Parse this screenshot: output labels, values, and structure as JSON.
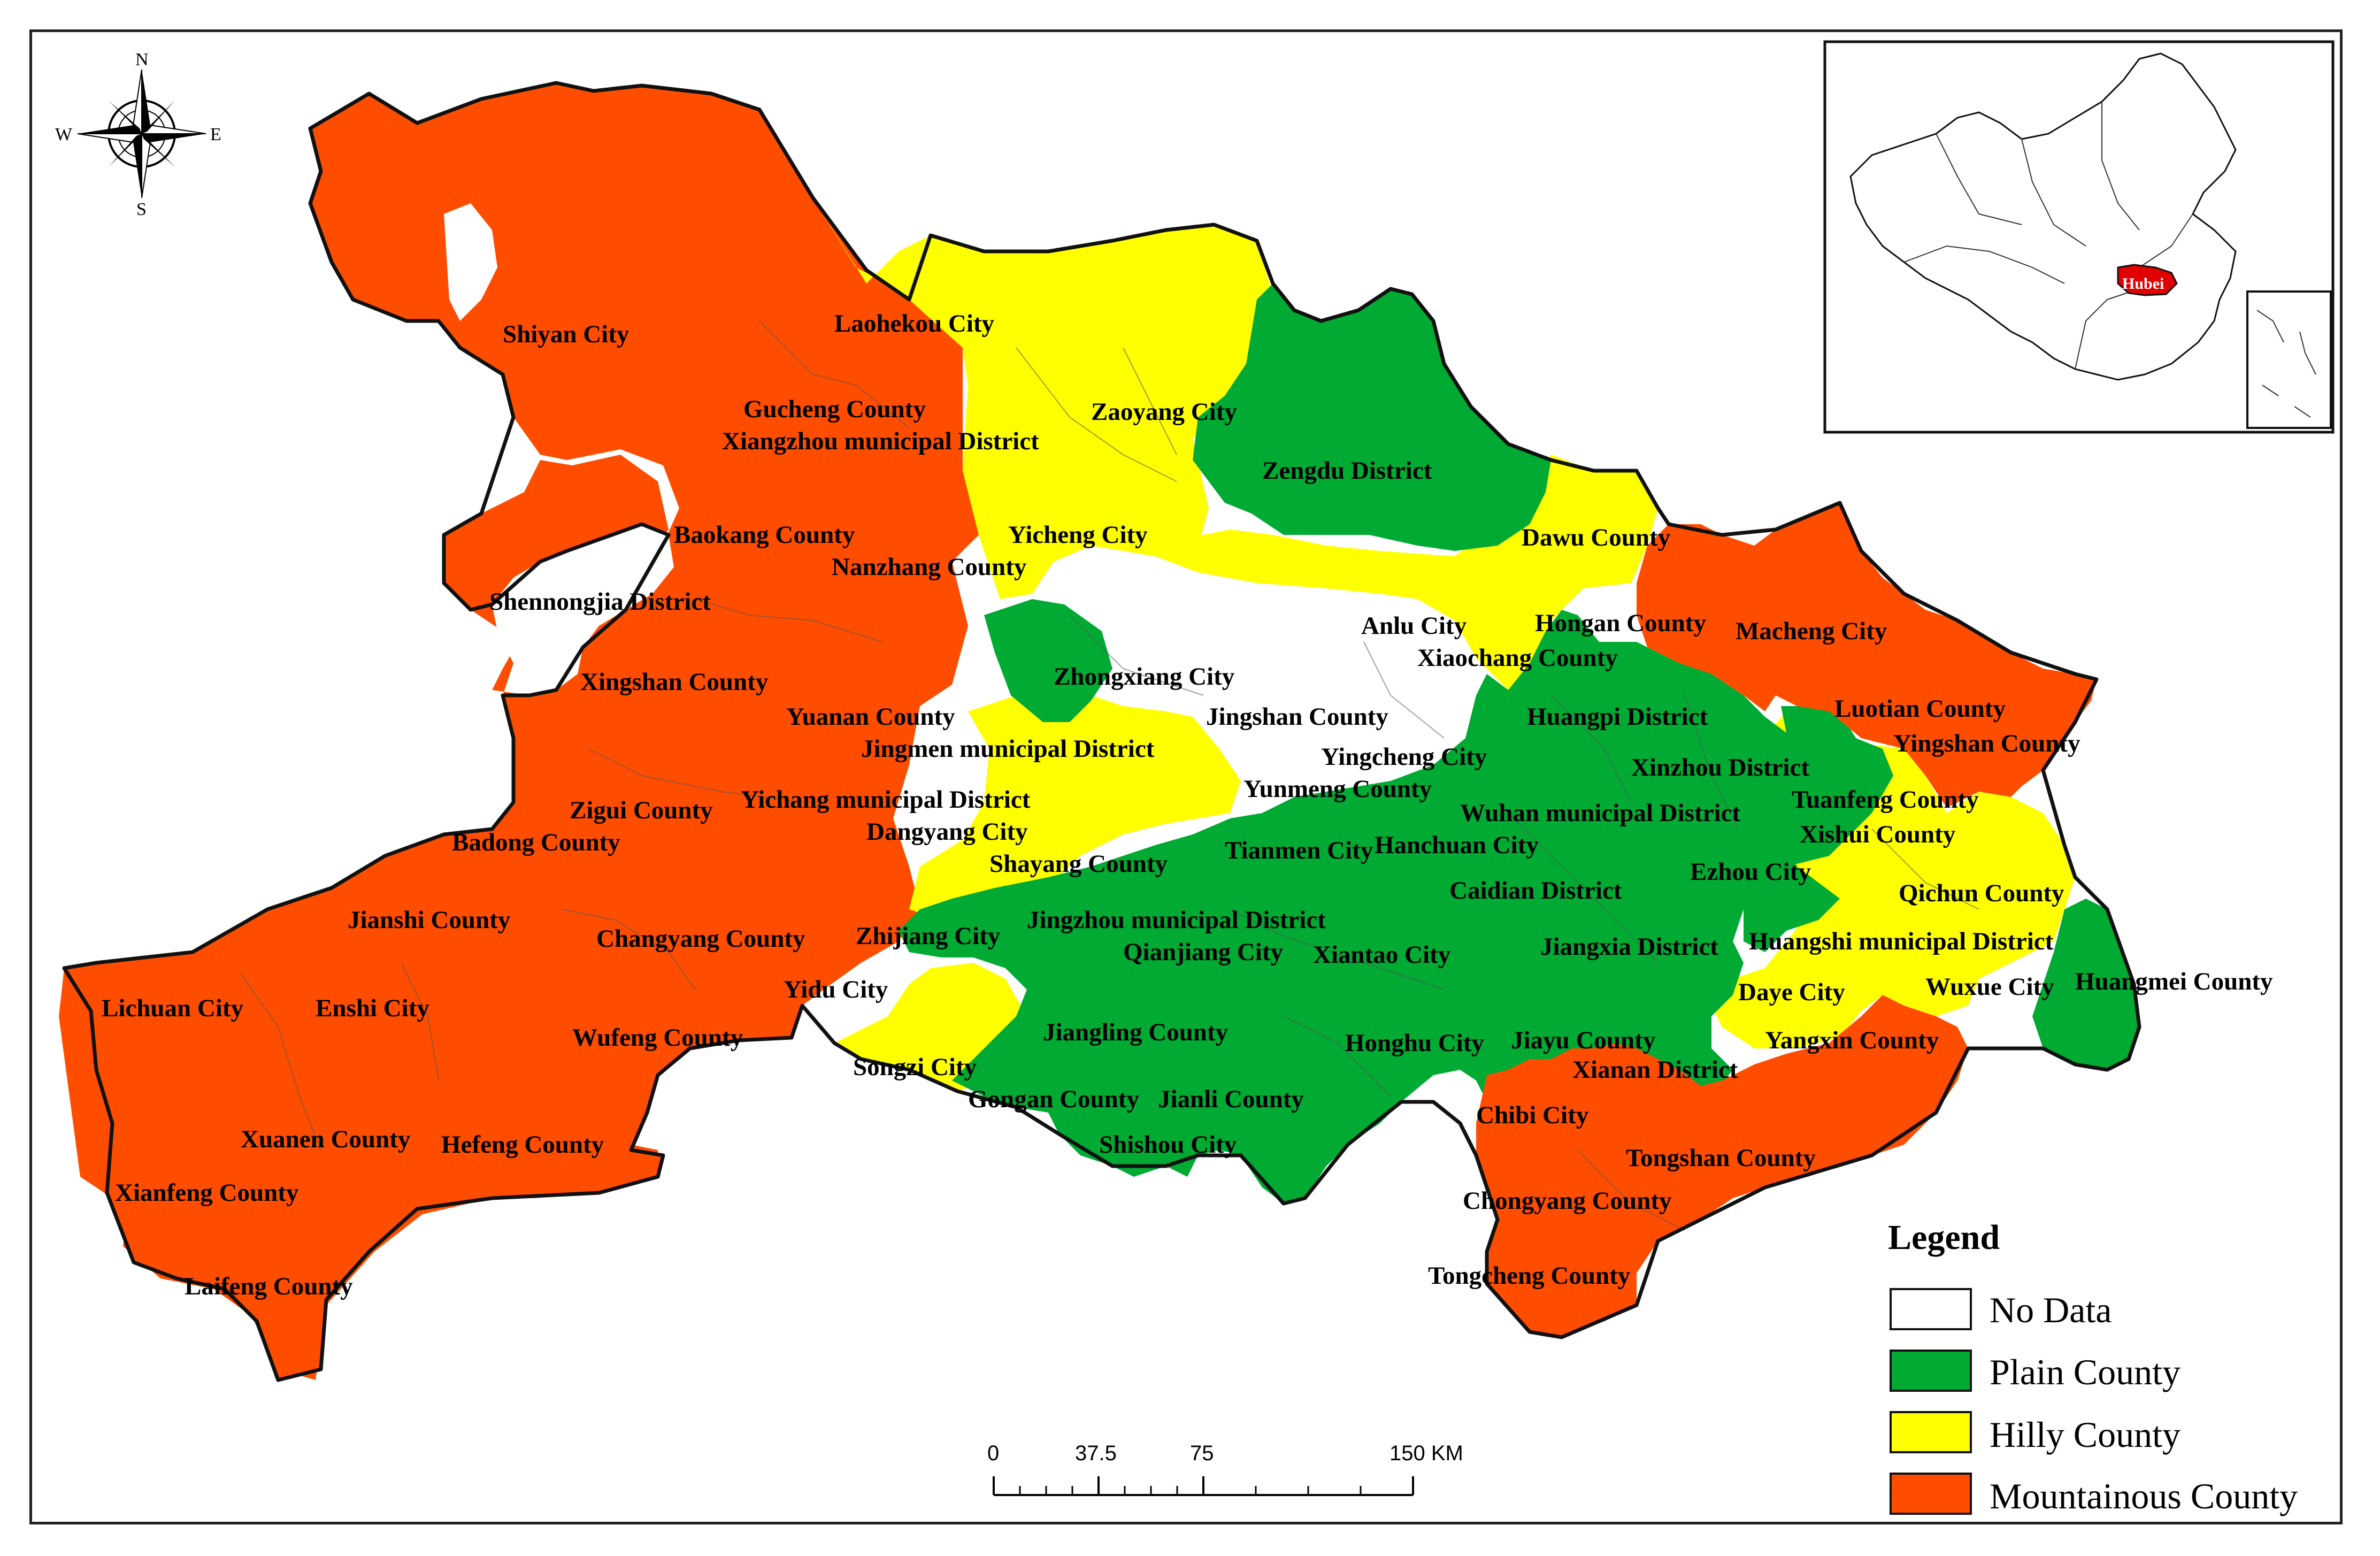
{
  "colors": {
    "no_data": "#ffffff",
    "plain": "#00aa33",
    "hilly": "#ffff00",
    "mountainous": "#ff4d00",
    "boundary": "#111111",
    "inset_highlight": "#e00000"
  },
  "compass": {
    "n": "N",
    "s": "S",
    "e": "E",
    "w": "W"
  },
  "legend": {
    "title": "Legend",
    "items": [
      {
        "label": "No Data",
        "color_key": "no_data"
      },
      {
        "label": "Plain County",
        "color_key": "plain"
      },
      {
        "label": "Hilly County",
        "color_key": "hilly"
      },
      {
        "label": "Mountainous County",
        "color_key": "mountainous"
      }
    ]
  },
  "scale_bar": {
    "ticks": [
      "0",
      "37.5",
      "75",
      "150 KM"
    ]
  },
  "inset": {
    "highlight_label": "Hubei"
  },
  "labels": [
    "Shiyan City",
    "Laohekou City",
    "Gucheng County",
    "Xiangzhou municipal District",
    "Zaoyang City",
    "Zengdu District",
    "Baokang County",
    "Nanzhang County",
    "Yicheng City",
    "Shennongjia District",
    "Dawu County",
    "Anlu City",
    "Hongan County",
    "Macheng City",
    "Xiaochang County",
    "Xingshan County",
    "Zhongxiang City",
    "Yuanan County",
    "Jingshan County",
    "Huangpi District",
    "Luotian County",
    "Jingmen municipal District",
    "Yingcheng City",
    "Yingshan County",
    "Xinzhou District",
    "Zigui County",
    "Yichang municipal District",
    "Yunmeng County",
    "Tuanfeng County",
    "Wuhan municipal District",
    "Badong County",
    "Dangyang City",
    "Hanchuan City",
    "Xishui County",
    "Tianmen City",
    "Shayang County",
    "Ezhou City",
    "Caidian District",
    "Qichun County",
    "Jianshi County",
    "Changyang County",
    "Zhijiang City",
    "Jingzhou municipal District",
    "Jiangxia District",
    "Huangshi municipal District",
    "Qianjiang City",
    "Xiantao City",
    "Huangmei County",
    "Lichuan City",
    "Enshi City",
    "Yidu City",
    "Daye City",
    "Wuxue City",
    "Jiangling County",
    "Wufeng County",
    "Honghu City",
    "Jiayu County",
    "Yangxin County",
    "Songzi City",
    "Xianan District",
    "Gongan County",
    "Jianli County",
    "Chibi City",
    "Xuanen County",
    "Hefeng County",
    "Shishou City",
    "Tongshan County",
    "Xianfeng County",
    "Chongyang County",
    "Laifeng County",
    "Tongcheng County"
  ]
}
